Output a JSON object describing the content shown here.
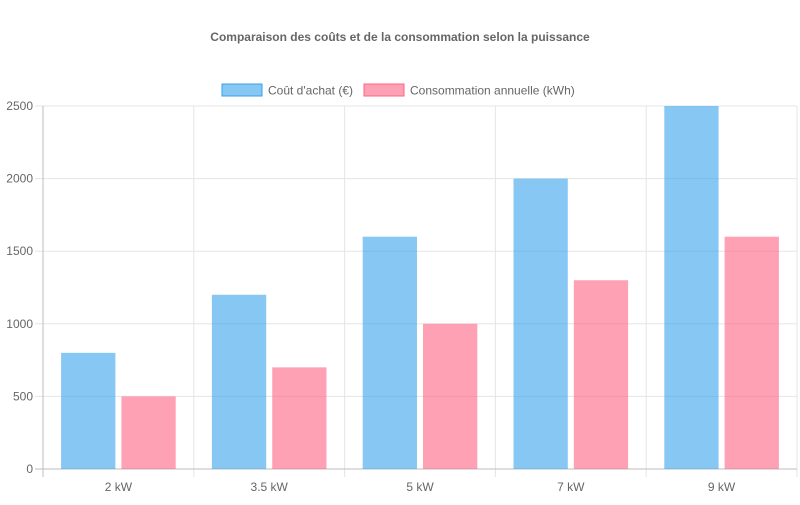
{
  "chart_data": {
    "type": "bar",
    "title": "Comparaison des coûts et de la consommation selon la puissance",
    "categories": [
      "2 kW",
      "3.5 kW",
      "5 kW",
      "7 kW",
      "9 kW"
    ],
    "series": [
      {
        "name": "Coût d'achat (€)",
        "values": [
          800,
          1200,
          1600,
          2000,
          2500
        ],
        "color": "#36a2eb",
        "fill": "rgba(54,162,235,0.6)"
      },
      {
        "name": "Consommation annuelle (kWh)",
        "values": [
          500,
          700,
          1000,
          1300,
          1600
        ],
        "color": "#ff6384",
        "fill": "rgba(255,99,132,0.6)"
      }
    ],
    "ylim": [
      0,
      2500
    ],
    "yticks": [
      0,
      500,
      1000,
      1500,
      2000,
      2500
    ],
    "grid": true,
    "legend_position": "top-center",
    "xlabel": "",
    "ylabel": ""
  }
}
